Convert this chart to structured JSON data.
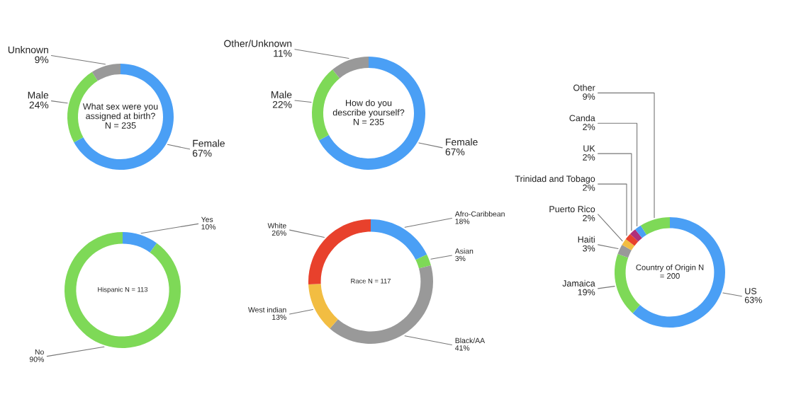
{
  "chart_data": [
    {
      "type": "donut",
      "title": "What sex were you\nassigned at birth?\nN = 235",
      "categories": [
        "Female",
        "Male",
        "Unknown"
      ],
      "values": [
        67,
        24,
        9
      ],
      "value_labels": [
        "67%",
        "24%",
        "9%"
      ],
      "colors": [
        "#4a9ff5",
        "#7ed957",
        "#999999"
      ],
      "legend": false
    },
    {
      "type": "donut",
      "title": "How do you\ndescribe yourself?\nN = 235",
      "categories": [
        "Female",
        "Male",
        "Other/Unknown"
      ],
      "values": [
        67,
        22,
        11
      ],
      "value_labels": [
        "67%",
        "22%",
        "11%"
      ],
      "colors": [
        "#4a9ff5",
        "#7ed957",
        "#999999"
      ],
      "legend": false
    },
    {
      "type": "donut",
      "title": "Hispanic N = 113",
      "categories": [
        "Yes",
        "No"
      ],
      "values": [
        10,
        90
      ],
      "value_labels": [
        "10%",
        "90%"
      ],
      "colors": [
        "#4a9ff5",
        "#7ed957"
      ],
      "legend": false
    },
    {
      "type": "donut",
      "title": "Race N = 117",
      "categories": [
        "Afro-Caribbean",
        "Asian",
        "Black/AA",
        "West indian",
        "White"
      ],
      "values": [
        18,
        3,
        41,
        13,
        26
      ],
      "value_labels": [
        "18%",
        "3%",
        "41%",
        "13%",
        "26%"
      ],
      "colors": [
        "#4a9ff5",
        "#7ed957",
        "#999999",
        "#f2bd42",
        "#e8412c"
      ],
      "legend": false
    },
    {
      "type": "donut",
      "title": "Country of Origin N\n= 200",
      "categories": [
        "US",
        "Jamaica",
        "Haiti",
        "Puerto Rico",
        "Trinidad and Tobago",
        "UK",
        "Canda",
        "Other"
      ],
      "values": [
        63,
        19,
        3,
        2,
        2,
        2,
        2,
        9
      ],
      "value_labels": [
        "63%",
        "19%",
        "3%",
        "2%",
        "2%",
        "2%",
        "2%",
        "9%"
      ],
      "colors": [
        "#4a9ff5",
        "#7ed957",
        "#999999",
        "#f2bd42",
        "#e8412c",
        "#b0307a",
        "#4a9ff5",
        "#7ed957"
      ],
      "legend": false
    }
  ]
}
